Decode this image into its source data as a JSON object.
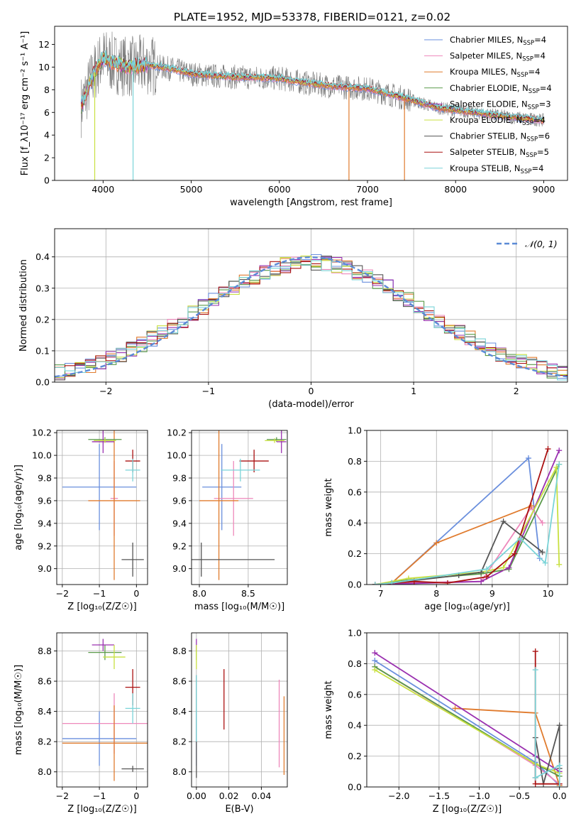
{
  "figure": {
    "title": "PLATE=1952, MJD=53378, FIBERID=0121, z=0.02",
    "colors": [
      "#6a8fdd",
      "#ee88bb",
      "#e07b2e",
      "#5a9a4a",
      "#9a30b0",
      "#c8e040",
      "#555555",
      "#aa1111",
      "#7ad4d8"
    ]
  },
  "chart_data": [
    {
      "id": "spectrum",
      "type": "line",
      "xlabel": "wavelength [Angstrom, rest frame]",
      "ylabel": "Flux [f_λ10⁻¹⁷ erg cm⁻² s⁻¹ A⁻¹]",
      "xlim": [
        3450,
        9270
      ],
      "ylim": [
        0,
        13.6
      ],
      "xticks": [
        4000,
        5000,
        6000,
        7000,
        8000,
        9000
      ],
      "yticks": [
        0,
        2,
        4,
        6,
        8,
        10,
        12
      ],
      "grid": false,
      "legend_position": "top-right",
      "continuum": {
        "x": [
          3750,
          3900,
          4000,
          4100,
          4300,
          4500,
          4800,
          5000,
          5300,
          5600,
          6000,
          6300,
          6600,
          7000,
          7400,
          7800,
          8200,
          8600,
          9000
        ],
        "y": [
          6.5,
          9.5,
          10.8,
          10.4,
          10.0,
          10.2,
          9.8,
          9.4,
          9.2,
          9.1,
          9.0,
          8.6,
          8.3,
          8.1,
          7.3,
          6.4,
          6.0,
          5.6,
          5.3
        ]
      },
      "series": [
        {
          "name": "Chabrier MILES, N",
          "sub": "SSP",
          "value": "=4"
        },
        {
          "name": "Salpeter MILES, N",
          "sub": "SSP",
          "value": "=4"
        },
        {
          "name": "Kroupa MILES, N",
          "sub": "SSP",
          "value": "=4"
        },
        {
          "name": "Chabrier ELODIE, N",
          "sub": "SSP",
          "value": "=4"
        },
        {
          "name": "Salpeter ELODIE, N",
          "sub": "SSP",
          "value": "=3"
        },
        {
          "name": "Kroupa ELODIE, N",
          "sub": "SSP",
          "value": "=4"
        },
        {
          "name": "Chabrier STELIB, N",
          "sub": "SSP",
          "value": "=6"
        },
        {
          "name": "Salpeter STELIB, N",
          "sub": "SSP",
          "value": "=5"
        },
        {
          "name": "Kroupa STELIB, N",
          "sub": "SSP",
          "value": "=4"
        }
      ]
    },
    {
      "id": "residuals",
      "type": "histogram",
      "xlabel": "(data-model)/error",
      "ylabel": "Normed distribution",
      "xlim": [
        -2.5,
        2.5
      ],
      "ylim": [
        0,
        0.49
      ],
      "xticks": [
        -2,
        -1,
        0,
        1,
        2
      ],
      "yticks": [
        0.0,
        0.1,
        0.2,
        0.3,
        0.4
      ],
      "grid": true,
      "legend": "𝒩(0, 1)",
      "legend_position": "top-right",
      "bin_width": 0.1
    },
    {
      "id": "age_vs_Z",
      "type": "errorbar",
      "xlabel": "Z [log₁₀(Z/Z☉)]",
      "ylabel": "age [log₁₀(age/yr)]",
      "xlim": [
        -2.15,
        0.3
      ],
      "ylim": [
        8.86,
        10.22
      ],
      "xticks": [
        -2,
        -1,
        0
      ],
      "yticks": [
        9.0,
        9.2,
        9.4,
        9.6,
        9.8,
        10.0,
        10.2
      ],
      "grid": true,
      "points": [
        {
          "c": 0,
          "x": -1.0,
          "xe": 1.0,
          "y": 9.72,
          "ye": 0.38
        },
        {
          "c": 1,
          "x": -0.6,
          "xe": 0.1,
          "y": 9.62,
          "ye": 0.33
        },
        {
          "c": 2,
          "x": -0.6,
          "xe": 0.7,
          "y": 9.6,
          "ye": 0.7
        },
        {
          "c": 3,
          "x": -0.85,
          "xe": 0.45,
          "y": 10.14,
          "ye": 0.02
        },
        {
          "c": 4,
          "x": -0.9,
          "xe": 0.3,
          "y": 10.12,
          "ye": 0.1
        },
        {
          "c": 5,
          "x": -0.85,
          "xe": 0.3,
          "y": 10.13,
          "ye": 0.02
        },
        {
          "c": 6,
          "x": -0.1,
          "xe": 0.3,
          "y": 9.08,
          "ye": 0.15
        },
        {
          "c": 7,
          "x": -0.1,
          "xe": 0.2,
          "y": 9.95,
          "ye": 0.1
        },
        {
          "c": 8,
          "x": -0.1,
          "xe": 0.2,
          "y": 9.87,
          "ye": 0.1
        }
      ]
    },
    {
      "id": "age_vs_mass",
      "type": "errorbar",
      "xlabel": "mass [log₁₀(M/M☉)]",
      "ylabel": "",
      "xlim": [
        7.92,
        8.9
      ],
      "ylim": [
        8.86,
        10.22
      ],
      "xticks": [
        8.0,
        8.5
      ],
      "yticks": [
        9.0,
        9.2,
        9.4,
        9.6,
        9.8,
        10.0,
        10.2
      ],
      "grid": true,
      "points": [
        {
          "c": 0,
          "x": 8.23,
          "xe": 0.2,
          "y": 9.72,
          "ye": 0.38
        },
        {
          "c": 1,
          "x": 8.35,
          "xe": 0.2,
          "y": 9.62,
          "ye": 0.33
        },
        {
          "c": 2,
          "x": 8.2,
          "xe": 0.2,
          "y": 9.6,
          "ye": 0.7
        },
        {
          "c": 3,
          "x": 8.79,
          "xe": 0.1,
          "y": 10.14,
          "ye": 0.02
        },
        {
          "c": 4,
          "x": 8.84,
          "xe": 0.05,
          "y": 10.12,
          "ye": 0.1
        },
        {
          "c": 5,
          "x": 8.77,
          "xe": 0.1,
          "y": 10.13,
          "ye": 0.02
        },
        {
          "c": 6,
          "x": 8.02,
          "xe": 0.75,
          "y": 9.08,
          "ye": 0.15
        },
        {
          "c": 7,
          "x": 8.56,
          "xe": 0.15,
          "y": 9.95,
          "ye": 0.1
        },
        {
          "c": 8,
          "x": 8.42,
          "xe": 0.2,
          "y": 9.87,
          "ye": 0.1
        }
      ]
    },
    {
      "id": "weight_vs_age",
      "type": "line",
      "xlabel": "age [log₁₀(age/yr)]",
      "ylabel": "mass weight",
      "xlim": [
        6.75,
        10.35
      ],
      "ylim": [
        0,
        1.0
      ],
      "xticks": [
        7,
        8,
        9,
        10
      ],
      "yticks": [
        0.0,
        0.2,
        0.4,
        0.6,
        0.8,
        1.0
      ],
      "grid": true,
      "series": [
        {
          "c": 0,
          "x": [
            6.9,
            7.2,
            9.65,
            9.85
          ],
          "y": [
            0.0,
            0.01,
            0.82,
            0.17
          ]
        },
        {
          "c": 1,
          "x": [
            6.9,
            7.2,
            8.8,
            9.7,
            9.9
          ],
          "y": [
            0.0,
            0.01,
            0.02,
            0.5,
            0.4
          ]
        },
        {
          "c": 2,
          "x": [
            6.9,
            7.2,
            8.0,
            9.7
          ],
          "y": [
            0.0,
            0.01,
            0.27,
            0.51
          ]
        },
        {
          "c": 3,
          "x": [
            6.9,
            7.5,
            8.8,
            9.3,
            10.2
          ],
          "y": [
            0.0,
            0.03,
            0.07,
            0.1,
            0.78
          ]
        },
        {
          "c": 4,
          "x": [
            6.9,
            8.8,
            9.3,
            10.2
          ],
          "y": [
            0.0,
            0.02,
            0.11,
            0.87
          ]
        },
        {
          "c": 5,
          "x": [
            6.9,
            7.5,
            8.8,
            9.2,
            10.15,
            10.2
          ],
          "y": [
            0.0,
            0.04,
            0.08,
            0.11,
            0.76,
            0.13
          ]
        },
        {
          "c": 6,
          "x": [
            6.9,
            7.2,
            8.4,
            8.8,
            9.2,
            9.9
          ],
          "y": [
            0.0,
            0.01,
            0.06,
            0.08,
            0.41,
            0.21
          ]
        },
        {
          "c": 7,
          "x": [
            6.9,
            7.6,
            8.2,
            8.9,
            9.4,
            10.0
          ],
          "y": [
            0.0,
            0.02,
            0.01,
            0.05,
            0.2,
            0.88
          ]
        },
        {
          "c": 8,
          "x": [
            6.9,
            7.2,
            8.9,
            9.5,
            9.95,
            10.2
          ],
          "y": [
            0.0,
            0.01,
            0.1,
            0.3,
            0.14,
            0.78
          ]
        }
      ]
    },
    {
      "id": "mass_vs_Z",
      "type": "errorbar",
      "xlabel": "Z [log₁₀(Z/Z☉)]",
      "ylabel": "mass [log₁₀(M/M☉)]",
      "xlim": [
        -2.15,
        0.3
      ],
      "ylim": [
        7.9,
        8.92
      ],
      "xticks": [
        -2,
        -1,
        0
      ],
      "yticks": [
        8.0,
        8.2,
        8.4,
        8.6,
        8.8
      ],
      "grid": true,
      "points": [
        {
          "c": 0,
          "x": -1.0,
          "xe": 1.0,
          "y": 8.22,
          "ye": 0.18
        },
        {
          "c": 1,
          "x": -0.6,
          "xe": 1.4,
          "y": 8.32,
          "ye": 0.2
        },
        {
          "c": 2,
          "x": -0.6,
          "xe": 1.4,
          "y": 8.19,
          "ye": 0.25
        },
        {
          "c": 3,
          "x": -0.85,
          "xe": 0.45,
          "y": 8.79,
          "ye": 0.05
        },
        {
          "c": 4,
          "x": -0.9,
          "xe": 0.3,
          "y": 8.84,
          "ye": 0.04
        },
        {
          "c": 5,
          "x": -0.6,
          "xe": 0.3,
          "y": 8.76,
          "ye": 0.08
        },
        {
          "c": 6,
          "x": -0.1,
          "xe": 0.3,
          "y": 8.02,
          "ye": 0.02
        },
        {
          "c": 7,
          "x": -0.1,
          "xe": 0.2,
          "y": 8.56,
          "ye": 0.12
        },
        {
          "c": 8,
          "x": -0.1,
          "xe": 0.2,
          "y": 8.42,
          "ye": 0.1
        }
      ]
    },
    {
      "id": "mass_vs_ebv",
      "type": "errorbar",
      "xlabel": "E(B-V)",
      "ylabel": "",
      "xlim": [
        -0.003,
        0.056
      ],
      "ylim": [
        7.9,
        8.92
      ],
      "xticks": [
        0.0,
        0.02,
        0.04
      ],
      "xtick_labels": [
        "0.00",
        "0.02",
        "0.04"
      ],
      "yticks": [
        8.0,
        8.2,
        8.4,
        8.6,
        8.8
      ],
      "grid": true,
      "points": [
        {
          "c": 0,
          "x": 0.0,
          "xe": 0,
          "y": 8.22,
          "ye": 0.18
        },
        {
          "c": 1,
          "x": 0.051,
          "xe": 0,
          "y": 8.32,
          "ye": 0.29
        },
        {
          "c": 2,
          "x": 0.054,
          "xe": 0,
          "y": 8.24,
          "ye": 0.26
        },
        {
          "c": 3,
          "x": 0.0,
          "xe": 0,
          "y": 8.79,
          "ye": 0.05
        },
        {
          "c": 4,
          "x": 0.0,
          "xe": 0,
          "y": 8.84,
          "ye": 0.04
        },
        {
          "c": 5,
          "x": 0.0,
          "xe": 0,
          "y": 8.76,
          "ye": 0.08
        },
        {
          "c": 6,
          "x": 0.0,
          "xe": 0,
          "y": 8.3,
          "ye": 0.34
        },
        {
          "c": 7,
          "x": 0.017,
          "xe": 0,
          "y": 8.48,
          "ye": 0.2
        },
        {
          "c": 8,
          "x": 0.0,
          "xe": 0,
          "y": 8.42,
          "ye": 0.22
        }
      ]
    },
    {
      "id": "weight_vs_Z",
      "type": "line",
      "xlabel": "Z [log₁₀(Z/Z☉)]",
      "ylabel": "mass weight",
      "xlim": [
        -2.4,
        0.1
      ],
      "ylim": [
        0,
        1.0
      ],
      "xticks": [
        -2.0,
        -1.5,
        -1.0,
        -0.5,
        0.0
      ],
      "xtick_labels": [
        "−2.0",
        "−1.5",
        "−1.0",
        "−0.5",
        "0.0"
      ],
      "yticks": [
        0.0,
        0.2,
        0.4,
        0.6,
        0.8,
        1.0
      ],
      "grid": true,
      "series": [
        {
          "c": 0,
          "x": [
            -2.3,
            -0.3,
            0.0
          ],
          "y": [
            0.82,
            0.16,
            0.01
          ]
        },
        {
          "c": 1,
          "x": [
            -2.3,
            -0.3,
            0.0
          ],
          "y": [
            0.78,
            0.14,
            0.02
          ]
        },
        {
          "c": 2,
          "x": [
            -1.3,
            -0.3,
            0.0
          ],
          "y": [
            0.51,
            0.48,
            0.01
          ]
        },
        {
          "c": 3,
          "x": [
            -2.3,
            -0.3,
            0.0
          ],
          "y": [
            0.78,
            0.15,
            0.07
          ]
        },
        {
          "c": 4,
          "x": [
            -2.3,
            -0.3,
            0.0
          ],
          "y": [
            0.87,
            0.2,
            0.1
          ]
        },
        {
          "c": 5,
          "x": [
            -2.3,
            -0.3,
            0.0
          ],
          "y": [
            0.76,
            0.15,
            0.09
          ]
        },
        {
          "c": 6,
          "x": [
            -0.3,
            -0.3,
            -0.2,
            0.0,
            0.0
          ],
          "y": [
            0.06,
            0.32,
            0.02,
            0.4,
            0.12
          ]
        },
        {
          "c": 7,
          "x": [
            -0.3,
            -0.3,
            0.0
          ],
          "y": [
            0.88,
            0.02,
            0.02
          ]
        },
        {
          "c": 8,
          "x": [
            -0.3,
            -0.3,
            0.0,
            0.0
          ],
          "y": [
            0.76,
            0.06,
            0.14,
            0.0
          ]
        }
      ]
    }
  ]
}
